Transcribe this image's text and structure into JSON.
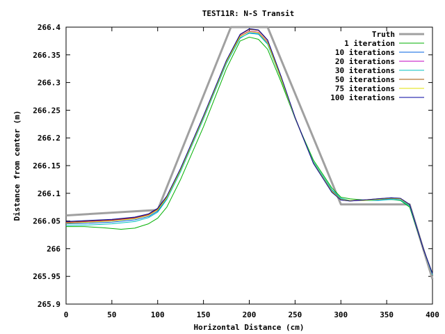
{
  "chart_data": {
    "type": "line",
    "title": "TEST11R: N-S Transit",
    "xlabel": "Horizontal Distance (cm)",
    "ylabel": "Distance from center (m)",
    "xlim": [
      0,
      400
    ],
    "ylim": [
      265.9,
      266.4
    ],
    "xticks": [
      0,
      50,
      100,
      150,
      200,
      250,
      300,
      350,
      400
    ],
    "xtick_labels": [
      "0",
      "50",
      "100",
      "150",
      "200",
      "250",
      "300",
      "350",
      "400"
    ],
    "yticks": [
      265.9,
      265.95,
      266.0,
      266.05,
      266.1,
      266.15,
      266.2,
      266.25,
      266.3,
      266.35,
      266.4
    ],
    "ytick_labels": [
      "265.9",
      "265.95",
      "266",
      "266.05",
      "266.1",
      "266.15",
      "266.2",
      "266.25",
      "266.3",
      "266.35",
      "266.4"
    ],
    "grid": false,
    "legend_position": "top-right",
    "series": [
      {
        "name": "Truth",
        "color": "#a0a0a0",
        "width": 3,
        "x": [
          0,
          100,
          180,
          220,
          300,
          375,
          400
        ],
        "y": [
          266.06,
          266.07,
          266.4,
          266.4,
          266.08,
          266.08,
          265.945
        ]
      },
      {
        "name": "1 iteration",
        "color": "#00b000",
        "width": 1,
        "x": [
          0,
          20,
          40,
          60,
          75,
          90,
          100,
          110,
          125,
          150,
          175,
          190,
          200,
          210,
          220,
          235,
          250,
          270,
          290,
          300,
          310,
          325,
          340,
          355,
          365,
          375,
          390,
          400
        ],
        "y": [
          266.04,
          266.04,
          266.038,
          266.035,
          266.037,
          266.045,
          266.055,
          266.075,
          266.125,
          266.22,
          266.325,
          266.375,
          266.382,
          266.378,
          266.36,
          266.3,
          266.235,
          266.16,
          266.11,
          266.093,
          266.09,
          266.088,
          266.088,
          266.089,
          266.087,
          266.075,
          266.0,
          265.955
        ]
      },
      {
        "name": "10 iterations",
        "color": "#0060e0",
        "width": 1,
        "x": [
          0,
          25,
          50,
          75,
          90,
          100,
          110,
          125,
          150,
          175,
          190,
          200,
          210,
          220,
          235,
          250,
          270,
          290,
          300,
          310,
          325,
          340,
          355,
          365,
          375,
          390,
          400
        ],
        "y": [
          266.045,
          266.046,
          266.048,
          266.052,
          266.058,
          266.068,
          266.09,
          266.14,
          266.235,
          266.335,
          266.38,
          266.39,
          266.388,
          266.37,
          266.305,
          266.235,
          266.155,
          266.105,
          266.09,
          266.087,
          266.087,
          266.088,
          266.09,
          266.09,
          266.078,
          266.0,
          265.955
        ]
      },
      {
        "name": "20 iterations",
        "color": "#c000c0",
        "width": 1,
        "x": [
          0,
          25,
          50,
          75,
          90,
          100,
          110,
          125,
          150,
          175,
          190,
          200,
          210,
          220,
          235,
          250,
          270,
          290,
          300,
          310,
          325,
          340,
          355,
          365,
          375,
          390,
          400
        ],
        "y": [
          266.047,
          266.049,
          266.051,
          266.055,
          266.061,
          266.071,
          266.093,
          266.143,
          266.238,
          266.338,
          266.384,
          266.393,
          266.391,
          266.373,
          266.307,
          266.236,
          266.155,
          266.104,
          266.089,
          266.087,
          266.088,
          266.089,
          266.091,
          266.09,
          266.079,
          266.0,
          265.955
        ]
      },
      {
        "name": "30 iterations",
        "color": "#00c0c0",
        "width": 1,
        "x": [
          0,
          25,
          50,
          75,
          90,
          100,
          110,
          125,
          150,
          175,
          190,
          200,
          210,
          220,
          235,
          250,
          270,
          290,
          300,
          310,
          325,
          340,
          355,
          365,
          375,
          390,
          400
        ],
        "y": [
          266.042,
          266.043,
          266.045,
          266.049,
          266.056,
          266.066,
          266.089,
          266.139,
          266.234,
          266.334,
          266.381,
          266.389,
          266.387,
          266.369,
          266.305,
          266.236,
          266.157,
          266.107,
          266.091,
          266.087,
          266.087,
          266.087,
          266.089,
          266.088,
          266.077,
          266.0,
          265.953
        ]
      },
      {
        "name": "50 iterations",
        "color": "#a05000",
        "width": 1,
        "x": [
          0,
          25,
          50,
          75,
          90,
          100,
          110,
          125,
          150,
          175,
          190,
          200,
          210,
          220,
          235,
          250,
          270,
          290,
          300,
          310,
          325,
          340,
          355,
          365,
          375,
          390,
          400
        ],
        "y": [
          266.048,
          266.05,
          266.052,
          266.056,
          266.062,
          266.072,
          266.094,
          266.144,
          266.239,
          266.339,
          266.386,
          266.396,
          266.394,
          266.376,
          266.309,
          266.237,
          266.155,
          266.103,
          266.088,
          266.086,
          266.088,
          266.09,
          266.092,
          266.091,
          266.08,
          266.0,
          265.955
        ]
      },
      {
        "name": "75 iterations",
        "color": "#e0e000",
        "width": 1,
        "x": [
          0,
          25,
          50,
          75,
          90,
          100,
          110,
          125,
          150,
          175,
          190,
          200,
          210,
          220,
          235,
          250,
          270,
          290,
          300,
          310,
          325,
          340,
          355,
          365,
          375,
          390,
          400
        ],
        "y": [
          266.046,
          266.048,
          266.05,
          266.054,
          266.06,
          266.07,
          266.092,
          266.142,
          266.237,
          266.337,
          266.383,
          266.392,
          266.39,
          266.372,
          266.306,
          266.236,
          266.155,
          266.104,
          266.089,
          266.087,
          266.087,
          266.089,
          266.091,
          266.09,
          266.079,
          266.0,
          265.955
        ]
      },
      {
        "name": "100 iterations",
        "color": "#0000a0",
        "width": 1,
        "x": [
          0,
          25,
          50,
          75,
          90,
          100,
          110,
          125,
          150,
          175,
          190,
          200,
          210,
          220,
          235,
          250,
          270,
          290,
          300,
          310,
          325,
          340,
          355,
          365,
          375,
          390,
          400
        ],
        "y": [
          266.049,
          266.051,
          266.053,
          266.057,
          266.063,
          266.073,
          266.095,
          266.145,
          266.24,
          266.34,
          266.387,
          266.397,
          266.395,
          266.377,
          266.31,
          266.237,
          266.154,
          266.102,
          266.088,
          266.086,
          266.088,
          266.09,
          266.092,
          266.091,
          266.08,
          266.0,
          265.955
        ]
      }
    ]
  }
}
